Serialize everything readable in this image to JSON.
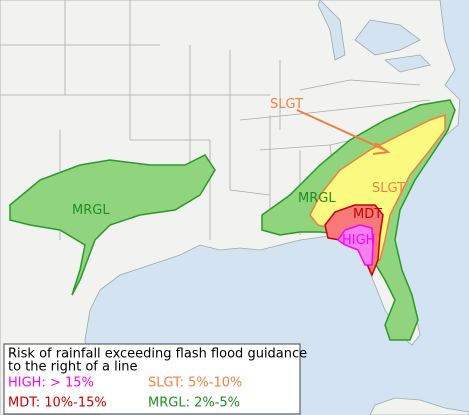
{
  "map": {
    "labels": [
      {
        "text": "MRGL",
        "risk": "mrgl"
      },
      {
        "text": "SLGT",
        "risk": "slgt"
      },
      {
        "text": "MRGL",
        "risk": "mrgl"
      },
      {
        "text": "SLGT",
        "risk": "slgt"
      },
      {
        "text": "MDT",
        "risk": "mdt"
      },
      {
        "text": "HIGH",
        "risk": "high"
      }
    ]
  },
  "legend": {
    "description": [
      "Risk of rainfall exceeding flash flood guidance",
      "to the right of a line"
    ],
    "entries": [
      "HIGH: > 15%",
      "SLGT: 5%-10%",
      "MDT: 10%-15%",
      "MRGL: 2%-5%"
    ]
  }
}
